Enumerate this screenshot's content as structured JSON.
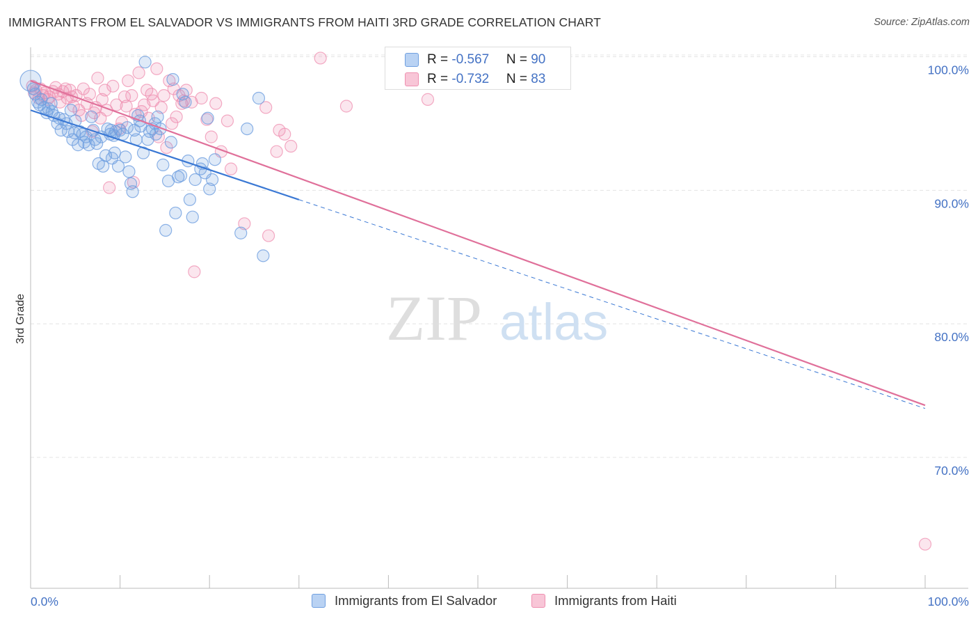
{
  "header": {
    "title": "IMMIGRANTS FROM EL SALVADOR VS IMMIGRANTS FROM HAITI 3RD GRADE CORRELATION CHART",
    "source": "Source: ZipAtlas.com"
  },
  "watermark": {
    "zip": "ZIP",
    "atlas": "atlas"
  },
  "stats": [
    {
      "r_label": "R = ",
      "r_value": "-0.567",
      "n_label": "N = ",
      "n_value": "90",
      "color": "#6f9fe0"
    },
    {
      "r_label": "R = ",
      "r_value": "-0.732",
      "n_label": "N = ",
      "n_value": "83",
      "color": "#ef8fb0"
    }
  ],
  "legend": [
    {
      "label": "Immigrants from El Salvador",
      "color": "#6f9fe0"
    },
    {
      "label": "Immigrants from Haiti",
      "color": "#ef8fb0"
    }
  ],
  "chart_data": {
    "type": "scatter",
    "title": "IMMIGRANTS FROM EL SALVADOR VS IMMIGRANTS FROM HAITI 3RD GRADE CORRELATION CHART",
    "xlabel": "",
    "ylabel": "3rd Grade",
    "xlim": [
      0,
      100
    ],
    "ylim": [
      60.2,
      100.6
    ],
    "x_tick_labels": [
      "0.0%",
      "100.0%"
    ],
    "y_ticks": [
      100,
      90,
      80,
      70
    ],
    "y_tick_labels": [
      "100.0%",
      "90.0%",
      "80.0%",
      "70.0%"
    ],
    "grid": true,
    "legend_position": "bottom-center",
    "colors": {
      "el_salvador": "#6f9fe0",
      "haiti": "#ef8fb0",
      "el_salvador_line": "#3a78d4",
      "haiti_line": "#e0709a"
    },
    "series": [
      {
        "name": "Immigrants from El Salvador",
        "trend": {
          "x": [
            0,
            30
          ],
          "y": [
            96.0,
            89.3
          ],
          "dashed_to_x": 100
        },
        "points": [
          [
            0,
            98.2
          ],
          [
            0.3,
            97.6
          ],
          [
            0.5,
            97.2
          ],
          [
            0.8,
            96.6
          ],
          [
            1.0,
            96.4
          ],
          [
            1.2,
            96.8
          ],
          [
            1.5,
            96.2
          ],
          [
            1.8,
            95.8
          ],
          [
            2.0,
            96.1
          ],
          [
            2.3,
            96.5
          ],
          [
            2.6,
            95.6
          ],
          [
            3.0,
            95.0
          ],
          [
            3.2,
            95.4
          ],
          [
            3.4,
            94.5
          ],
          [
            3.7,
            95.3
          ],
          [
            4.0,
            95.0
          ],
          [
            4.2,
            94.4
          ],
          [
            4.5,
            96.0
          ],
          [
            4.7,
            93.8
          ],
          [
            5.0,
            95.2
          ],
          [
            5.3,
            93.4
          ],
          [
            5.5,
            94.4
          ],
          [
            5.8,
            94.2
          ],
          [
            6.0,
            93.6
          ],
          [
            6.2,
            94.0
          ],
          [
            6.5,
            93.4
          ],
          [
            6.8,
            95.5
          ],
          [
            7.0,
            94.5
          ],
          [
            7.2,
            93.8
          ],
          [
            7.4,
            93.5
          ],
          [
            7.6,
            92.0
          ],
          [
            7.9,
            94.0
          ],
          [
            8.1,
            91.8
          ],
          [
            8.4,
            92.6
          ],
          [
            8.6,
            94.6
          ],
          [
            8.9,
            94.2
          ],
          [
            9.0,
            94.5
          ],
          [
            9.1,
            92.4
          ],
          [
            9.4,
            92.8
          ],
          [
            9.5,
            94.4
          ],
          [
            9.8,
            91.8
          ],
          [
            10.0,
            94.5
          ],
          [
            10.3,
            94.2
          ],
          [
            10.6,
            92.5
          ],
          [
            10.8,
            94.7
          ],
          [
            11.0,
            91.4
          ],
          [
            11.2,
            90.5
          ],
          [
            11.4,
            89.9
          ],
          [
            11.6,
            94.5
          ],
          [
            11.8,
            93.8
          ],
          [
            12.0,
            95.6
          ],
          [
            12.3,
            94.8
          ],
          [
            12.6,
            92.8
          ],
          [
            12.8,
            99.6
          ],
          [
            13.1,
            93.8
          ],
          [
            13.3,
            94.4
          ],
          [
            13.6,
            94.6
          ],
          [
            13.9,
            95.0
          ],
          [
            14.0,
            94.2
          ],
          [
            14.2,
            95.5
          ],
          [
            14.5,
            94.6
          ],
          [
            14.8,
            91.9
          ],
          [
            15.1,
            87.0
          ],
          [
            15.4,
            90.7
          ],
          [
            15.7,
            93.6
          ],
          [
            15.9,
            98.3
          ],
          [
            16.2,
            88.3
          ],
          [
            16.5,
            91.0
          ],
          [
            16.8,
            91.1
          ],
          [
            17.0,
            97.2
          ],
          [
            17.3,
            96.6
          ],
          [
            17.6,
            92.2
          ],
          [
            17.8,
            89.3
          ],
          [
            18.1,
            88.0
          ],
          [
            18.4,
            90.8
          ],
          [
            19.0,
            91.6
          ],
          [
            19.2,
            92.0
          ],
          [
            19.5,
            91.3
          ],
          [
            19.8,
            95.4
          ],
          [
            20.0,
            90.1
          ],
          [
            20.3,
            90.8
          ],
          [
            20.6,
            92.3
          ],
          [
            23.5,
            86.8
          ],
          [
            24.2,
            94.6
          ],
          [
            25.5,
            96.9
          ],
          [
            26.0,
            85.1
          ],
          [
            2.4,
            95.9
          ],
          [
            4.9,
            94.3
          ],
          [
            9.3,
            94.1
          ],
          [
            12.2,
            95.2
          ]
        ]
      },
      {
        "name": "Immigrants from Haiti",
        "trend": {
          "x": [
            0,
            100
          ],
          "y": [
            98.2,
            73.9
          ]
        },
        "points": [
          [
            0.2,
            97.8
          ],
          [
            0.4,
            97.3
          ],
          [
            0.6,
            97.5
          ],
          [
            0.9,
            96.9
          ],
          [
            1.1,
            97.6
          ],
          [
            1.4,
            97.1
          ],
          [
            1.6,
            97.3
          ],
          [
            1.9,
            96.8
          ],
          [
            2.1,
            97.0
          ],
          [
            2.5,
            97.4
          ],
          [
            2.8,
            97.7
          ],
          [
            3.1,
            97.2
          ],
          [
            3.3,
            96.6
          ],
          [
            3.6,
            97.4
          ],
          [
            3.9,
            97.6
          ],
          [
            4.1,
            96.9
          ],
          [
            4.4,
            97.5
          ],
          [
            4.6,
            97.0
          ],
          [
            4.8,
            96.3
          ],
          [
            5.1,
            97.1
          ],
          [
            5.4,
            96.0
          ],
          [
            5.7,
            95.6
          ],
          [
            5.9,
            97.6
          ],
          [
            6.3,
            96.5
          ],
          [
            6.6,
            97.2
          ],
          [
            6.9,
            94.4
          ],
          [
            7.1,
            95.8
          ],
          [
            7.3,
            96.2
          ],
          [
            7.5,
            98.4
          ],
          [
            7.8,
            95.4
          ],
          [
            8.0,
            96.8
          ],
          [
            8.3,
            97.5
          ],
          [
            8.5,
            96.0
          ],
          [
            8.8,
            90.2
          ],
          [
            9.2,
            97.8
          ],
          [
            9.6,
            96.4
          ],
          [
            9.9,
            94.6
          ],
          [
            10.2,
            95.1
          ],
          [
            10.5,
            97.0
          ],
          [
            10.7,
            96.3
          ],
          [
            10.9,
            98.2
          ],
          [
            11.3,
            97.1
          ],
          [
            11.5,
            90.6
          ],
          [
            11.7,
            95.7
          ],
          [
            12.1,
            98.8
          ],
          [
            12.4,
            95.9
          ],
          [
            12.7,
            96.4
          ],
          [
            13.0,
            97.5
          ],
          [
            13.2,
            95.4
          ],
          [
            13.5,
            97.2
          ],
          [
            13.7,
            96.7
          ],
          [
            14.1,
            99.1
          ],
          [
            14.3,
            94.0
          ],
          [
            14.6,
            96.2
          ],
          [
            14.9,
            97.1
          ],
          [
            15.2,
            93.2
          ],
          [
            15.5,
            98.2
          ],
          [
            15.8,
            95.0
          ],
          [
            16.0,
            97.6
          ],
          [
            16.3,
            95.5
          ],
          [
            16.6,
            97.1
          ],
          [
            16.9,
            96.5
          ],
          [
            17.1,
            96.7
          ],
          [
            17.4,
            97.5
          ],
          [
            18.0,
            96.6
          ],
          [
            18.3,
            83.9
          ],
          [
            19.1,
            96.9
          ],
          [
            19.7,
            95.3
          ],
          [
            20.2,
            94.0
          ],
          [
            20.7,
            96.5
          ],
          [
            21.3,
            92.9
          ],
          [
            22.0,
            95.2
          ],
          [
            22.4,
            91.6
          ],
          [
            23.9,
            87.5
          ],
          [
            26.3,
            96.2
          ],
          [
            26.6,
            86.6
          ],
          [
            27.5,
            92.9
          ],
          [
            27.8,
            94.5
          ],
          [
            28.4,
            94.2
          ],
          [
            29.1,
            93.3
          ],
          [
            32.4,
            99.9
          ],
          [
            35.3,
            96.3
          ],
          [
            44.4,
            96.8
          ]
        ],
        "outlier": [
          100,
          63.5
        ]
      }
    ]
  }
}
